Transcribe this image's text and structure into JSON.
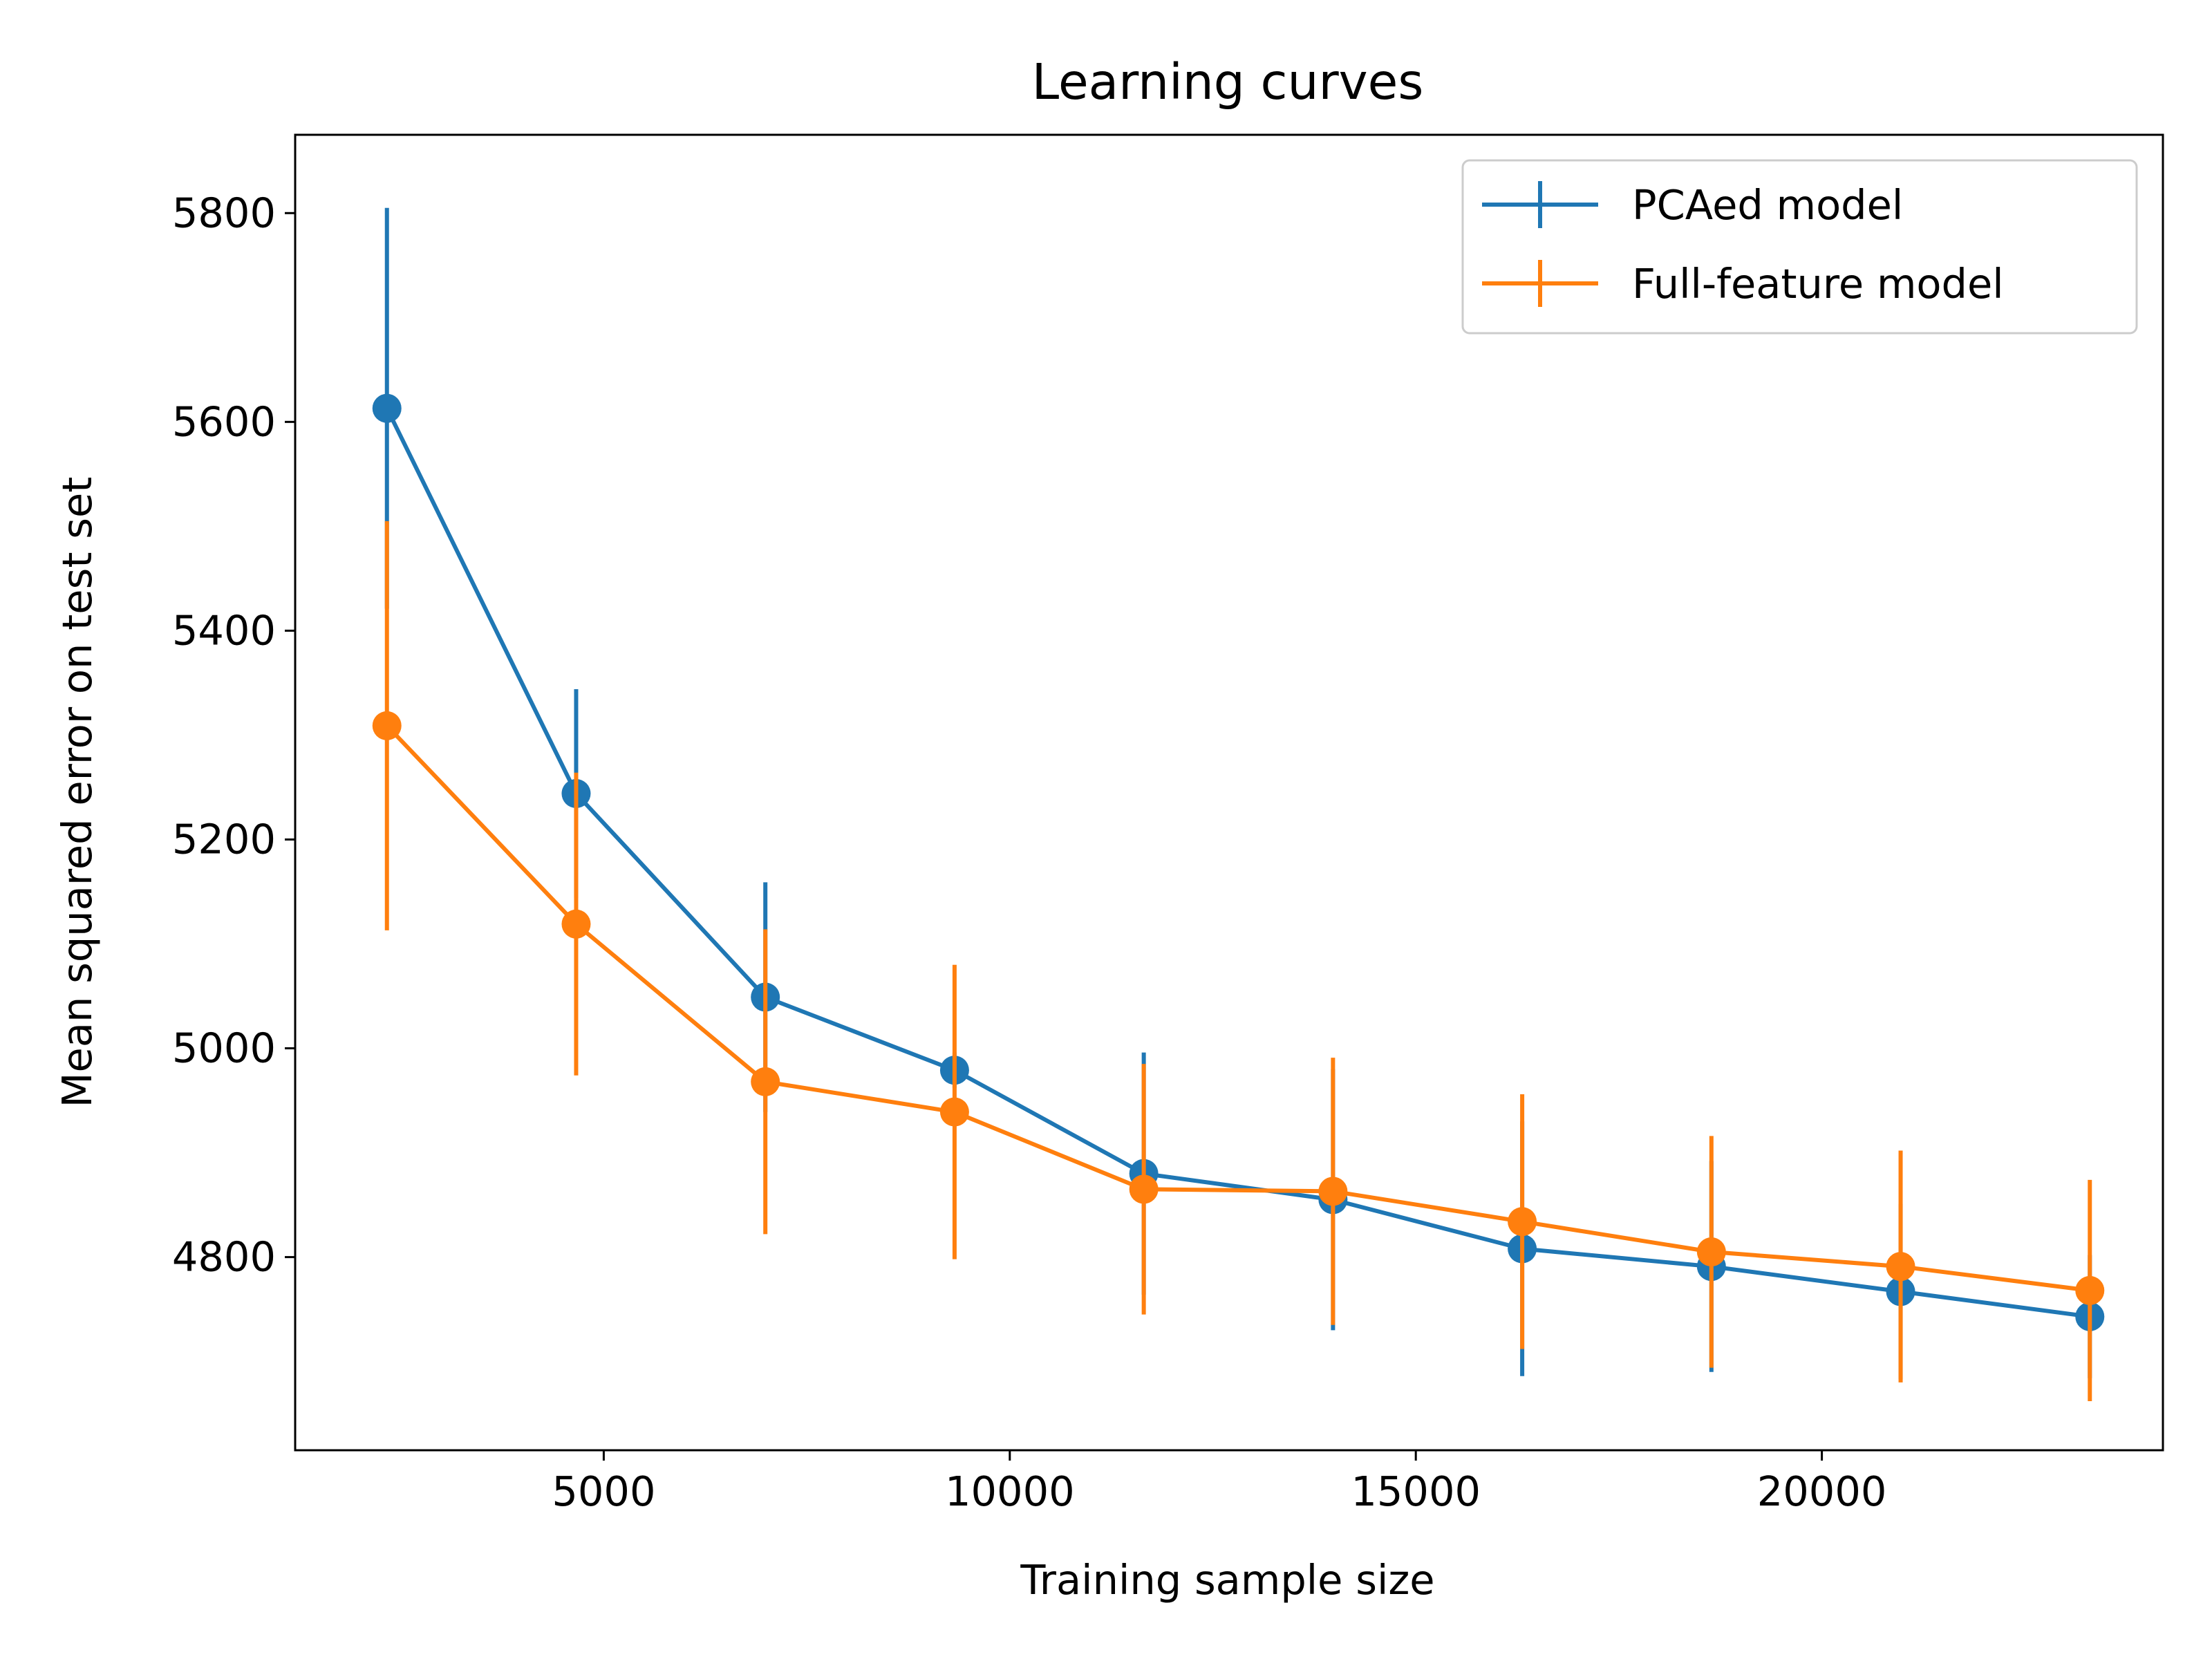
{
  "chart_data": {
    "type": "line",
    "title": "Learning curves",
    "xlabel": "Training sample size",
    "ylabel": "Mean squared error on test set",
    "xlim": [
      1200,
      24200
    ],
    "ylim": [
      4615,
      5875
    ],
    "xticks": [
      5000,
      10000,
      15000,
      20000
    ],
    "xtick_labels": [
      "5000",
      "10000",
      "15000",
      "20000"
    ],
    "yticks": [
      4800,
      5000,
      5200,
      5400,
      5600,
      5800
    ],
    "ytick_labels": [
      "4800",
      "5000",
      "5200",
      "5400",
      "5600",
      "5800"
    ],
    "grid": false,
    "legend_position": "top-right",
    "error_bars": true,
    "x": [
      2330,
      4660,
      6990,
      9320,
      11650,
      13980,
      16310,
      18640,
      20970,
      23300
    ],
    "series": [
      {
        "name": "PCAed model",
        "color": "#1f77b4",
        "values": [
          5613,
          5244,
          5049,
          4979,
          4880,
          4855,
          4808,
          4791,
          4767,
          4743
        ],
        "errors": [
          192,
          100,
          110,
          17,
          116,
          125,
          122,
          101,
          84,
          59
        ]
      },
      {
        "name": "Full-feature model",
        "color": "#ff7f0e",
        "values": [
          5309,
          5119,
          4968,
          4939,
          4865,
          4863,
          4834,
          4805,
          4791,
          4768
        ],
        "errors": [
          196,
          145,
          146,
          141,
          120,
          128,
          122,
          111,
          111,
          106
        ]
      }
    ]
  }
}
